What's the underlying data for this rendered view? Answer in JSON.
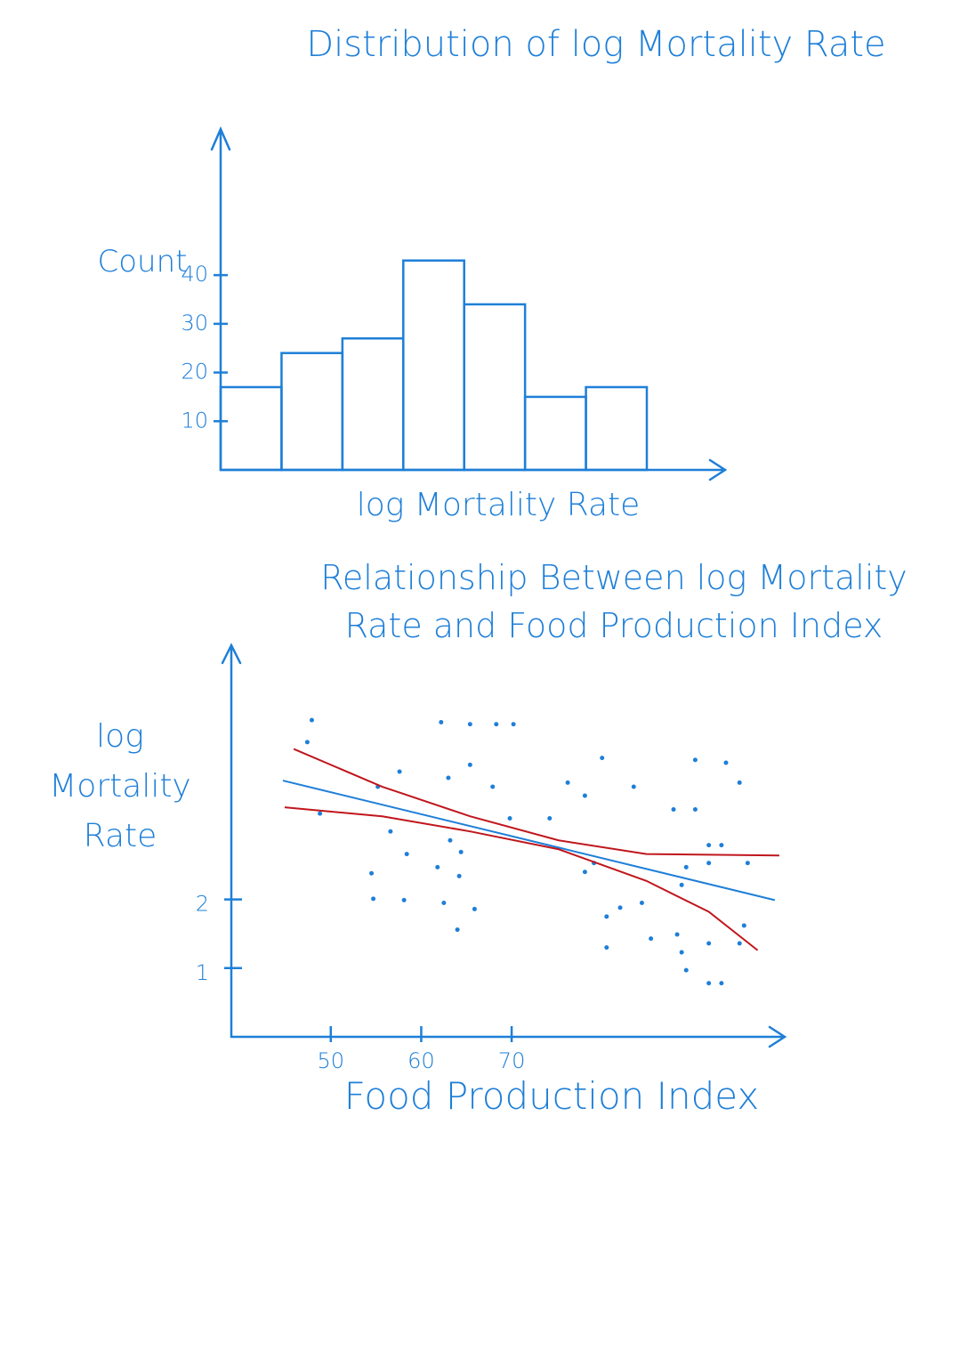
{
  "chart_data": [
    {
      "type": "bar",
      "title": "Distribution of log Mortality Rate",
      "xlabel": "log Mortality Rate",
      "ylabel": "Count",
      "categories": [
        null,
        null,
        null,
        null,
        null,
        null,
        null
      ],
      "values": [
        17,
        24,
        27,
        43,
        34,
        15,
        17
      ],
      "color": "#1e7fd8",
      "ylim": [
        0,
        70
      ],
      "yticks": [
        10,
        20,
        30,
        40
      ]
    },
    {
      "type": "scatter",
      "title": "Relationship Between log Mortality Rate and Food Production Index",
      "xlabel": "Food Production Index",
      "ylabel": "log Mortality Rate",
      "xlim": [
        39,
        100
      ],
      "ylim": [
        0,
        5.7
      ],
      "xticks": [
        50,
        60,
        70
      ],
      "yticks": [
        1,
        2
      ],
      "points": {
        "color": "#1e7fd8",
        "x": [
          47.9,
          47.4,
          48.8,
          55.2,
          57.6,
          56.6,
          58.4,
          54.5,
          54.7,
          58.1,
          61.8,
          62.5,
          64.0,
          65.9,
          64.2,
          64.4,
          63.2,
          62.2,
          65.4,
          68.3,
          70.2,
          63.0,
          65.4,
          67.9,
          69.8,
          74.2,
          76.2,
          78.1,
          80.0,
          83.5,
          87.9,
          90.3,
          90.3,
          93.7,
          95.2,
          91.8,
          93.2,
          89.3,
          91.8,
          96.1,
          88.8,
          80.5,
          82.0,
          84.4,
          80.5,
          85.4,
          88.3,
          91.8,
          95.2,
          95.7,
          89.3,
          91.8,
          93.2,
          88.8,
          78.1,
          79.1
        ],
        "y": [
          4.61,
          4.29,
          3.25,
          3.64,
          3.86,
          2.99,
          2.66,
          2.38,
          2.01,
          1.99,
          2.47,
          1.95,
          1.56,
          1.86,
          2.34,
          2.69,
          2.86,
          4.58,
          4.55,
          4.55,
          4.55,
          3.77,
          3.96,
          3.64,
          3.18,
          3.18,
          3.7,
          3.51,
          4.06,
          3.64,
          3.31,
          3.31,
          4.03,
          3.99,
          3.7,
          2.79,
          2.79,
          2.47,
          2.53,
          2.53,
          2.21,
          1.75,
          1.88,
          1.95,
          1.3,
          1.43,
          1.49,
          1.36,
          1.36,
          1.62,
          0.97,
          0.78,
          0.78,
          1.23,
          2.4,
          2.53
        ]
      },
      "lines": [
        {
          "color": "#1e7fd8",
          "x": [
            44.7,
            99.1
          ],
          "y": [
            3.73,
            1.99
          ]
        },
        {
          "color": "#c0161c",
          "x": [
            45.9,
            55.7,
            65.4,
            75.2,
            84.9,
            99.6
          ],
          "y": [
            4.19,
            3.64,
            3.21,
            2.86,
            2.66,
            2.64
          ]
        },
        {
          "color": "#c0161c",
          "x": [
            44.9,
            55.7,
            65.4,
            75.2,
            84.9,
            91.8,
            97.2
          ],
          "y": [
            3.34,
            3.21,
            2.99,
            2.73,
            2.27,
            1.82,
            1.26
          ]
        }
      ]
    }
  ]
}
